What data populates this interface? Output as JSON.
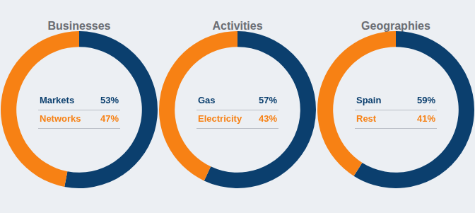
{
  "chart_data": [
    {
      "type": "doughnut",
      "title": "Businesses",
      "categories": [
        "Markets",
        "Networks"
      ],
      "values": [
        53,
        47
      ],
      "value_labels": [
        "53%",
        "47%"
      ],
      "colors": [
        "#0b3f6e",
        "#f78114"
      ],
      "legend": "center"
    },
    {
      "type": "doughnut",
      "title": "Activities",
      "categories": [
        "Gas",
        "Electricity"
      ],
      "values": [
        57,
        43
      ],
      "value_labels": [
        "57%",
        "43%"
      ],
      "colors": [
        "#0b3f6e",
        "#f78114"
      ],
      "legend": "center"
    },
    {
      "type": "doughnut",
      "title": "Geographies",
      "categories": [
        "Spain",
        "Rest"
      ],
      "values": [
        59,
        41
      ],
      "value_labels": [
        "59%",
        "41%"
      ],
      "colors": [
        "#0b3f6e",
        "#f78114"
      ],
      "legend": "center"
    }
  ]
}
